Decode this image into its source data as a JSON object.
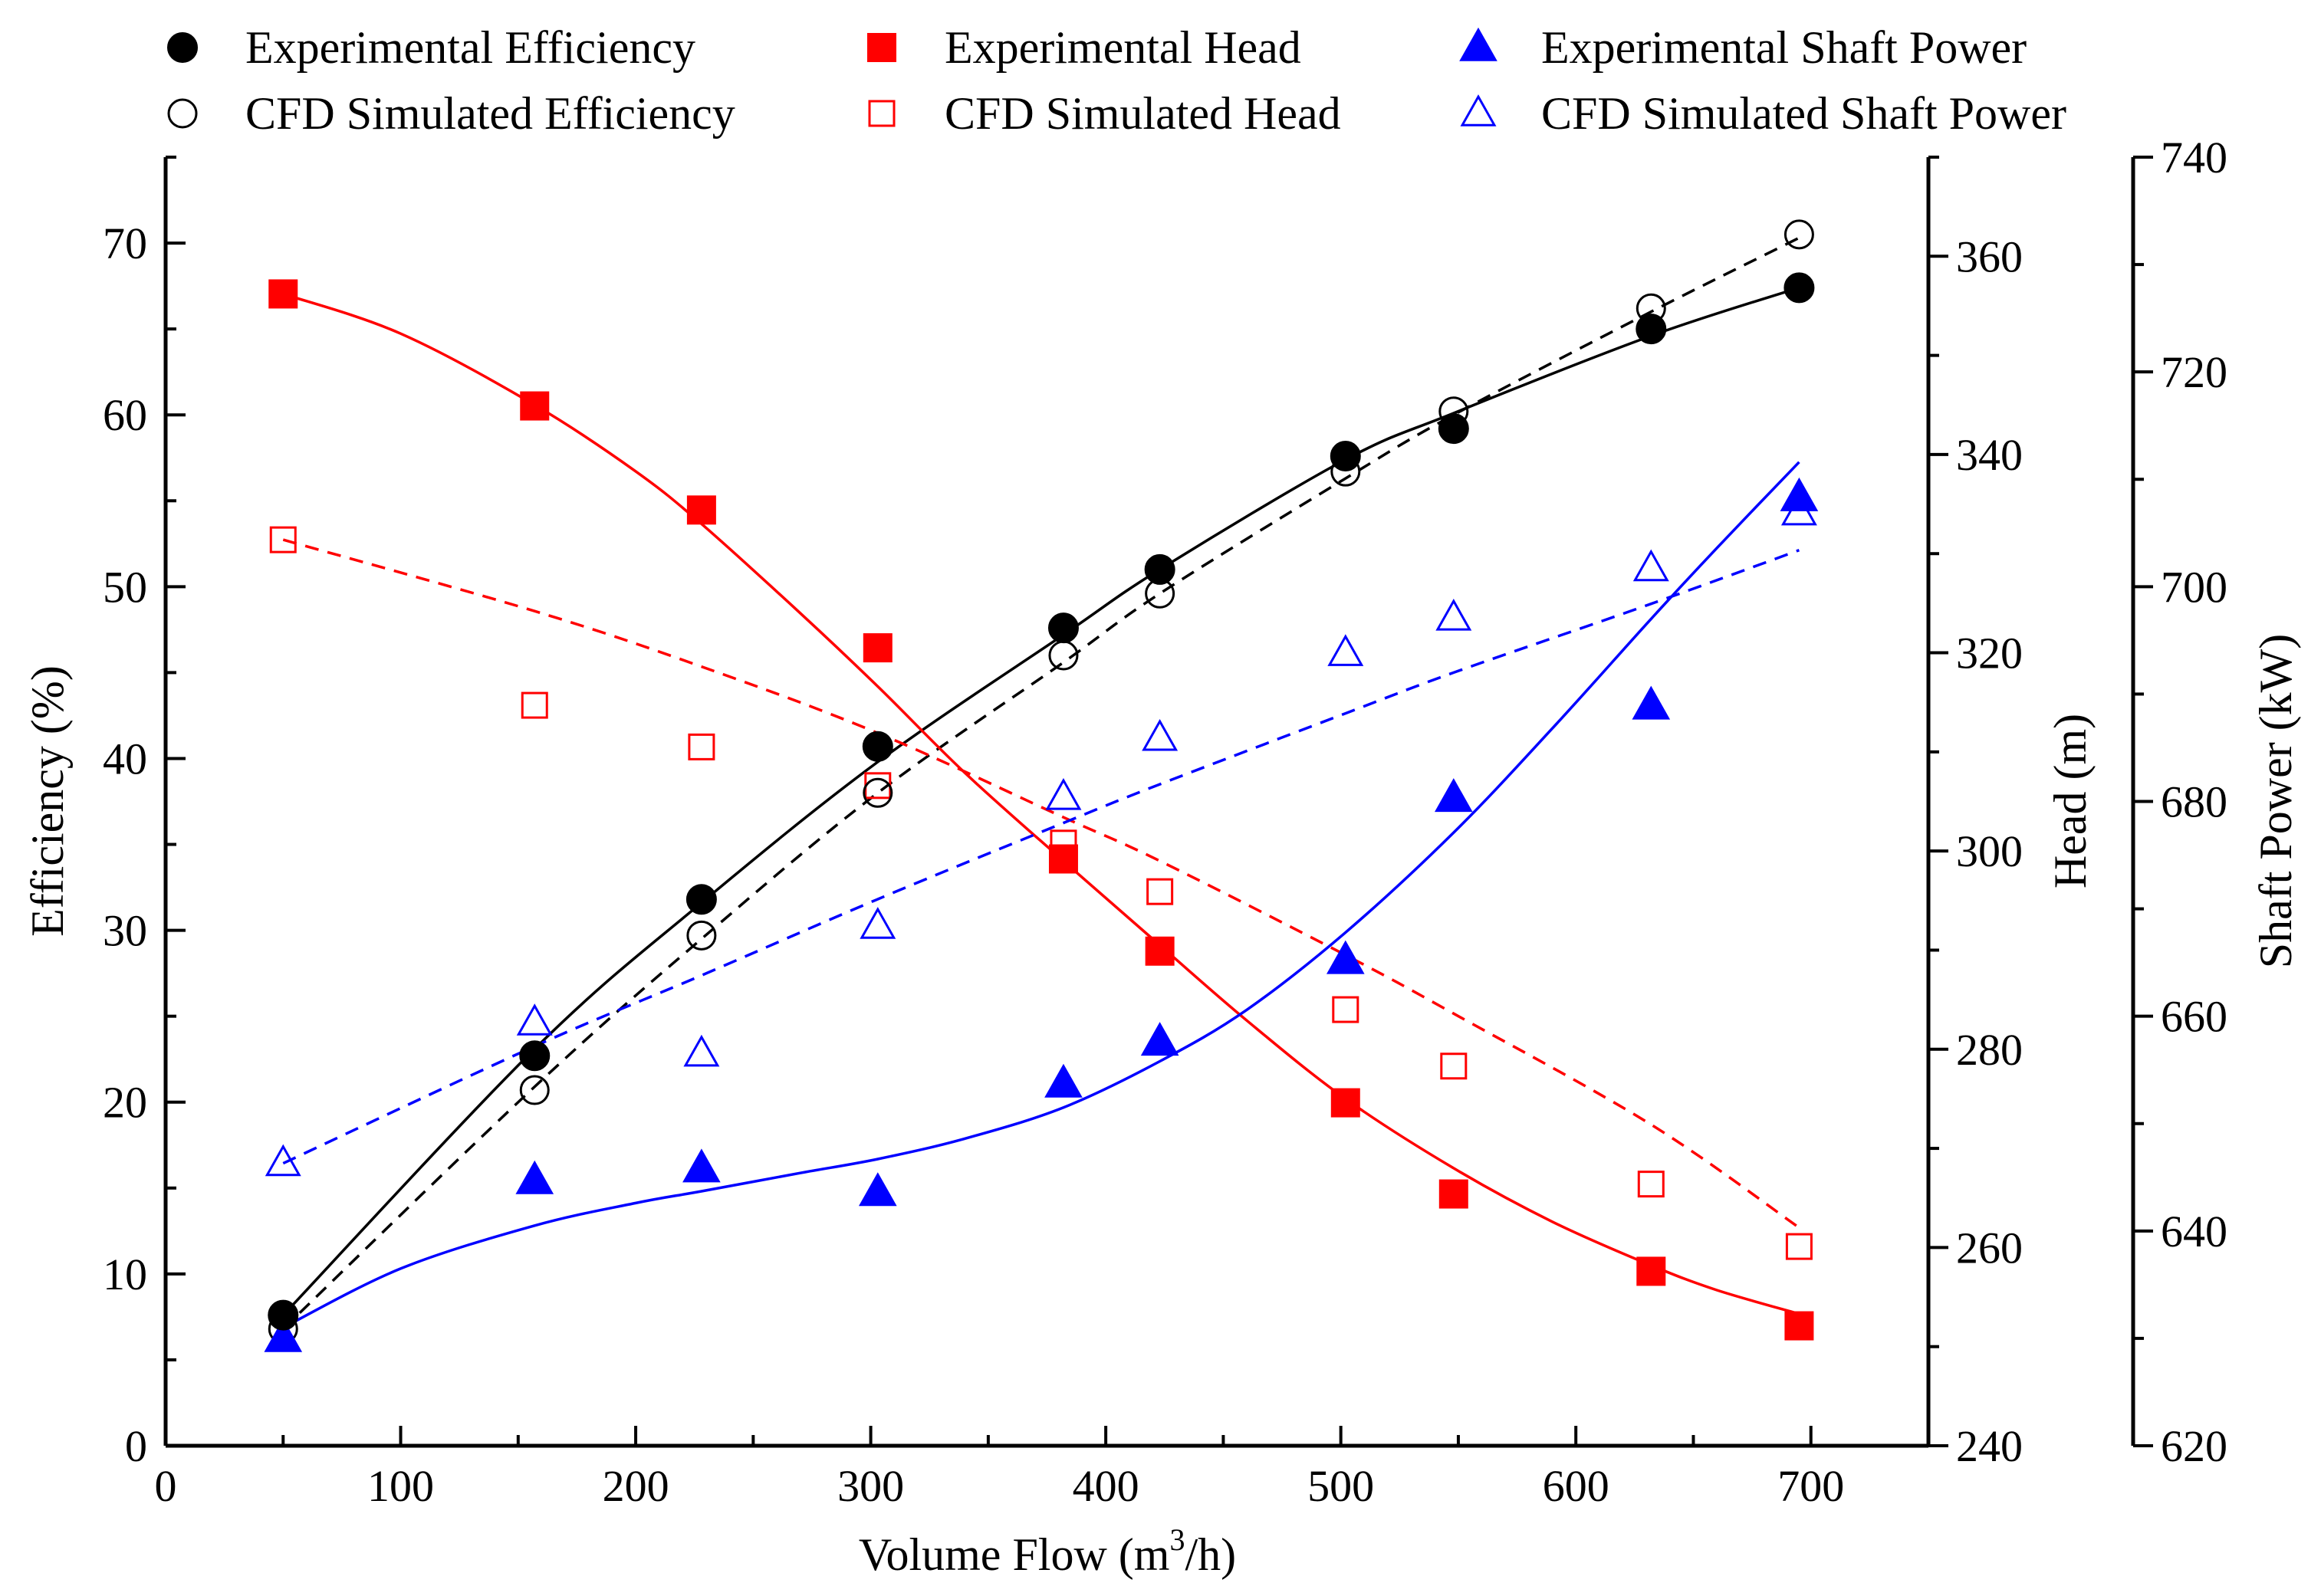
{
  "chart_data": {
    "type": "scatter",
    "title": "",
    "xlabel": "Volume Flow (m³/h)",
    "xlim": [
      0,
      750
    ],
    "xticks": [
      "0",
      "100",
      "200",
      "300",
      "400",
      "500",
      "600",
      "700"
    ],
    "axes": {
      "efficiency": {
        "label": "Efficiency (%)",
        "ylim": [
          0,
          75
        ],
        "ticks": [
          "0",
          "10",
          "20",
          "30",
          "40",
          "50",
          "60",
          "70"
        ]
      },
      "head": {
        "label": "Head (m)",
        "ylim": [
          240,
          370
        ],
        "ticks": [
          "240",
          "260",
          "280",
          "300",
          "320",
          "340",
          "360"
        ]
      },
      "power": {
        "label": "Shaft Power (kW)",
        "ylim": [
          620,
          740
        ],
        "ticks": [
          "620",
          "640",
          "660",
          "680",
          "700",
          "720",
          "740"
        ]
      }
    },
    "legend": "top",
    "colors": {
      "efficiency": "#000000",
      "head": "#ff0000",
      "power": "#0000ff"
    },
    "series": [
      {
        "key": "exp_eff",
        "name": "Experimental Efficiency",
        "axis": "efficiency",
        "marker": "circle",
        "filled": true,
        "line": "solid",
        "x": [
          50,
          157,
          228,
          303,
          382,
          423,
          502,
          548,
          632,
          695
        ],
        "y": [
          7.6,
          22.7,
          31.8,
          40.7,
          47.6,
          51.0,
          57.6,
          59.2,
          65.0,
          67.4
        ]
      },
      {
        "key": "cfd_eff",
        "name": "CFD Simulated Efficiency",
        "axis": "efficiency",
        "marker": "circle",
        "filled": false,
        "line": "dashed",
        "x": [
          50,
          157,
          228,
          303,
          382,
          423,
          502,
          548,
          632,
          695
        ],
        "y": [
          6.8,
          20.7,
          29.7,
          38.0,
          46.0,
          49.6,
          56.7,
          60.2,
          66.2,
          70.5
        ]
      },
      {
        "key": "exp_head",
        "name": "Experimental Head",
        "axis": "head",
        "marker": "square",
        "filled": true,
        "line": "solid",
        "x": [
          50,
          157,
          228,
          303,
          382,
          423,
          502,
          548,
          632,
          695
        ],
        "y": [
          356.2,
          344.9,
          334.4,
          320.5,
          299.2,
          289.9,
          274.6,
          265.4,
          257.6,
          252.1
        ]
      },
      {
        "key": "cfd_head",
        "name": "CFD Simulated Head",
        "axis": "head",
        "marker": "square",
        "filled": false,
        "line": "dashed",
        "x": [
          50,
          157,
          228,
          303,
          382,
          423,
          502,
          548,
          632,
          695
        ],
        "y": [
          331.4,
          314.7,
          310.5,
          306.6,
          300.8,
          295.9,
          284.0,
          278.3,
          266.4,
          260.1
        ]
      },
      {
        "key": "exp_power",
        "name": "Experimental Shaft Power",
        "axis": "power",
        "marker": "triangle",
        "filled": true,
        "line": "solid",
        "x": [
          50,
          157,
          228,
          303,
          382,
          423,
          502,
          548,
          632,
          695
        ],
        "y": [
          630.0,
          644.7,
          645.8,
          643.6,
          653.7,
          657.6,
          665.2,
          680.3,
          688.9,
          708.3
        ]
      },
      {
        "key": "cfd_power",
        "name": "CFD Simulated Shaft Power",
        "axis": "power",
        "marker": "triangle",
        "filled": false,
        "line": "dashed",
        "x": [
          50,
          157,
          228,
          303,
          382,
          423,
          502,
          548,
          632,
          695
        ],
        "y": [
          646.3,
          659.4,
          656.5,
          668.4,
          680.4,
          685.9,
          693.8,
          697.1,
          701.7,
          706.9
        ]
      }
    ],
    "fits": {
      "exp_eff": {
        "x": [
          50,
          157,
          228,
          303,
          382,
          423,
          502,
          548,
          632,
          695
        ],
        "y": [
          7.6,
          23.1,
          31.6,
          39.8,
          47.2,
          51.0,
          57.4,
          60.1,
          64.6,
          67.4
        ]
      },
      "cfd_eff": {
        "x": [
          50,
          157,
          228,
          303,
          382,
          423,
          502,
          548,
          632,
          695
        ],
        "y": [
          6.8,
          20.9,
          29.5,
          38.0,
          45.6,
          49.6,
          56.3,
          60.0,
          66.0,
          70.3
        ]
      },
      "exp_head": {
        "x": [
          50,
          100,
          157,
          200,
          228,
          270,
          303,
          340,
          382,
          423,
          460,
          502,
          548,
          590,
          632,
          660,
          695
        ],
        "y": [
          356.2,
          352.2,
          345.0,
          338.3,
          333.0,
          324.0,
          316.6,
          307.9,
          299.0,
          290.5,
          282.9,
          275.0,
          268.0,
          262.6,
          258.2,
          255.7,
          253.3
        ]
      },
      "cfd_head": {
        "x": [
          50,
          157,
          228,
          303,
          382,
          423,
          502,
          548,
          632,
          695
        ],
        "y": [
          331.4,
          324.2,
          318.6,
          311.9,
          303.4,
          299.0,
          289.5,
          283.6,
          272.4,
          262.0
        ]
      },
      "exp_power": {
        "x": [
          50,
          100,
          157,
          200,
          228,
          270,
          303,
          340,
          382,
          423,
          460,
          502,
          548,
          590,
          632,
          660,
          695
        ],
        "y": [
          631.0,
          636.5,
          640.5,
          642.6,
          643.7,
          645.4,
          646.7,
          648.6,
          651.5,
          655.8,
          660.6,
          667.8,
          677.1,
          686.8,
          697.0,
          703.6,
          711.6
        ]
      },
      "cfd_power": {
        "x": [
          50,
          157,
          228,
          303,
          382,
          423,
          502,
          548,
          632,
          695
        ],
        "y": [
          646.3,
          657.2,
          663.8,
          670.9,
          678.0,
          681.6,
          688.2,
          692.0,
          698.4,
          703.4
        ]
      }
    }
  }
}
